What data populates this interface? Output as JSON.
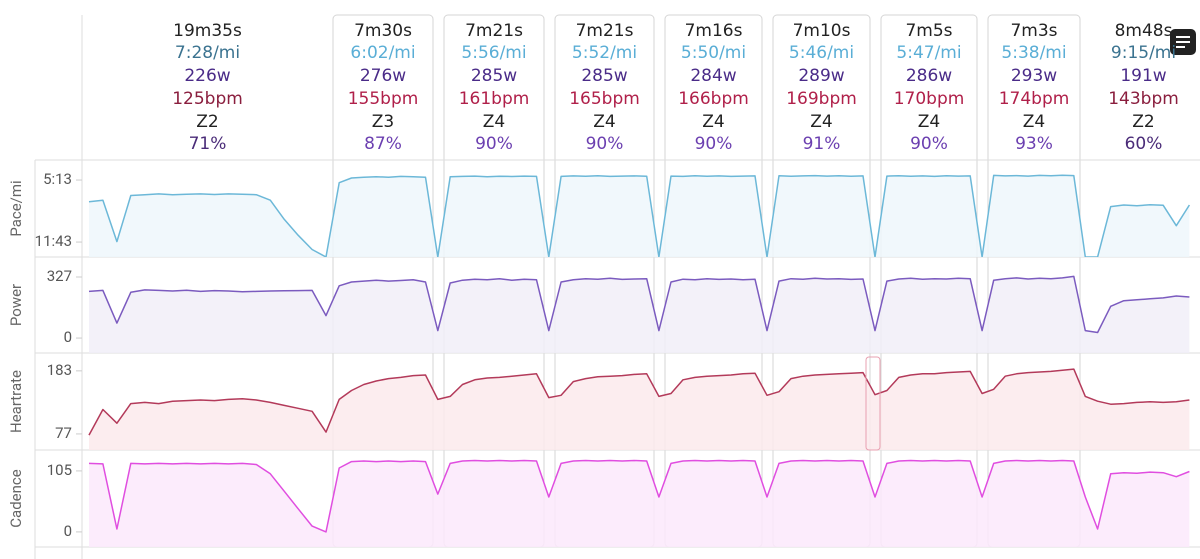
{
  "intervals": [
    {
      "time": "19m35s",
      "pace": "7:28/mi",
      "power": "226w",
      "heartrate": "125bpm",
      "zone": "Z2",
      "intensity": "71%"
    },
    {
      "time": "7m30s",
      "pace": "6:02/mi",
      "power": "276w",
      "heartrate": "155bpm",
      "zone": "Z3",
      "intensity": "87%"
    },
    {
      "time": "7m21s",
      "pace": "5:56/mi",
      "power": "285w",
      "heartrate": "161bpm",
      "zone": "Z4",
      "intensity": "90%"
    },
    {
      "time": "7m21s",
      "pace": "5:52/mi",
      "power": "285w",
      "heartrate": "165bpm",
      "zone": "Z4",
      "intensity": "90%"
    },
    {
      "time": "7m16s",
      "pace": "5:50/mi",
      "power": "284w",
      "heartrate": "166bpm",
      "zone": "Z4",
      "intensity": "90%"
    },
    {
      "time": "7m10s",
      "pace": "5:46/mi",
      "power": "289w",
      "heartrate": "169bpm",
      "zone": "Z4",
      "intensity": "91%"
    },
    {
      "time": "7m5s",
      "pace": "5:47/mi",
      "power": "286w",
      "heartrate": "170bpm",
      "zone": "Z4",
      "intensity": "90%"
    },
    {
      "time": "7m3s",
      "pace": "5:38/mi",
      "power": "293w",
      "heartrate": "174bpm",
      "zone": "Z4",
      "intensity": "93%"
    },
    {
      "time": "8m48s",
      "pace": "9:15/mi",
      "power": "191w",
      "heartrate": "143bpm",
      "zone": "Z2",
      "intensity": "60%"
    }
  ],
  "chart_data": [
    {
      "type": "area",
      "ylabel": "Pace/mi",
      "color": "#6cb8d8",
      "fill": "#eef7fb",
      "ylim": [
        797,
        187
      ],
      "yticks": [
        {
          "value": 313,
          "label": "5:13"
        },
        {
          "value": 703,
          "label": "11:43"
        }
      ],
      "values": [
        450,
        440,
        700,
        410,
        405,
        400,
        405,
        402,
        400,
        404,
        400,
        402,
        405,
        440,
        560,
        660,
        750,
        797,
        330,
        300,
        295,
        292,
        296,
        290,
        292,
        295,
        797,
        292,
        290,
        288,
        292,
        289,
        291,
        288,
        290,
        797,
        290,
        287,
        289,
        286,
        290,
        288,
        287,
        289,
        797,
        288,
        290,
        286,
        289,
        287,
        290,
        288,
        287,
        797,
        286,
        289,
        287,
        285,
        288,
        286,
        289,
        287,
        797,
        288,
        286,
        289,
        287,
        290,
        286,
        288,
        287,
        797,
        284,
        287,
        285,
        288,
        284,
        286,
        283,
        285,
        797,
        797,
        480,
        470,
        475,
        468,
        472,
        600,
        470
      ]
    },
    {
      "type": "area",
      "ylabel": "Power",
      "color": "#7b5bbf",
      "fill": "#f1eef8",
      "ylim": [
        -80,
        434
      ],
      "yticks": [
        327,
        0
      ],
      "values": [
        250,
        255,
        80,
        245,
        258,
        255,
        252,
        256,
        250,
        254,
        252,
        248,
        250,
        252,
        253,
        254,
        255,
        120,
        280,
        300,
        305,
        310,
        305,
        308,
        312,
        300,
        40,
        295,
        310,
        315,
        312,
        318,
        310,
        315,
        312,
        40,
        300,
        312,
        318,
        315,
        320,
        314,
        316,
        318,
        40,
        300,
        315,
        312,
        318,
        314,
        316,
        312,
        315,
        40,
        305,
        318,
        315,
        320,
        316,
        318,
        314,
        316,
        40,
        305,
        316,
        320,
        315,
        318,
        316,
        320,
        318,
        40,
        310,
        318,
        322,
        316,
        320,
        318,
        322,
        330,
        40,
        30,
        170,
        200,
        205,
        210,
        215,
        225,
        220
      ]
    },
    {
      "type": "area",
      "ylabel": "Heartrate",
      "color": "#b33a5a",
      "fill": "#fbeaec",
      "ylim": [
        50,
        213
      ],
      "yticks": [
        183,
        77
      ],
      "values": [
        75,
        118,
        95,
        128,
        130,
        128,
        132,
        133,
        134,
        133,
        135,
        136,
        134,
        130,
        125,
        120,
        115,
        80,
        135,
        150,
        160,
        166,
        170,
        172,
        175,
        176,
        135,
        140,
        160,
        168,
        171,
        172,
        174,
        176,
        178,
        138,
        142,
        165,
        170,
        173,
        174,
        175,
        177,
        178,
        140,
        145,
        168,
        172,
        174,
        175,
        176,
        178,
        179,
        142,
        148,
        170,
        174,
        176,
        177,
        178,
        179,
        180,
        143,
        150,
        172,
        176,
        178,
        178,
        180,
        181,
        182,
        145,
        152,
        174,
        178,
        180,
        181,
        182,
        184,
        186,
        140,
        132,
        127,
        128,
        130,
        131,
        130,
        131,
        134
      ]
    },
    {
      "type": "area",
      "ylabel": "Cadence",
      "color": "#e04ee0",
      "fill": "#fbe9fb",
      "ylim": [
        -26,
        141
      ],
      "yticks": [
        105,
        0
      ],
      "values": [
        118,
        117,
        5,
        118,
        117,
        118,
        117,
        118,
        117,
        118,
        117,
        118,
        116,
        100,
        70,
        40,
        10,
        0,
        110,
        121,
        122,
        121,
        122,
        121,
        122,
        121,
        65,
        118,
        122,
        123,
        122,
        123,
        122,
        123,
        122,
        60,
        118,
        122,
        123,
        122,
        123,
        122,
        123,
        122,
        60,
        118,
        122,
        123,
        122,
        123,
        122,
        123,
        122,
        60,
        118,
        122,
        123,
        122,
        123,
        122,
        123,
        122,
        60,
        118,
        122,
        123,
        122,
        123,
        122,
        123,
        122,
        60,
        118,
        122,
        123,
        122,
        123,
        122,
        123,
        122,
        60,
        5,
        100,
        102,
        101,
        103,
        102,
        95,
        104
      ]
    }
  ]
}
